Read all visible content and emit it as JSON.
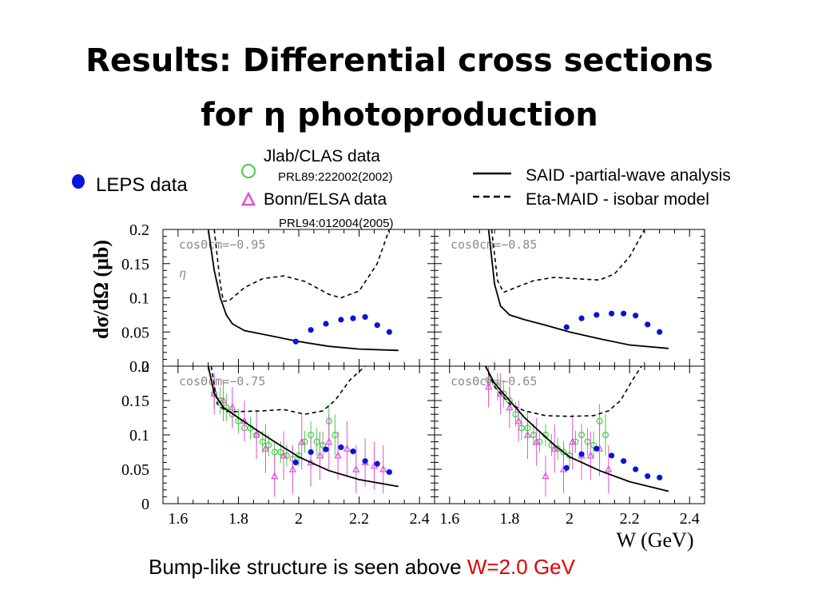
{
  "slide": {
    "title_line1": "Results: Differential cross sections",
    "title_line2": "for η photoproduction",
    "conclusion_prefix": "Bump-like structure is seen above ",
    "conclusion_highlight": "W=2.0 GeV"
  },
  "legend": {
    "leps": "LEPS data",
    "clas": "Jlab/CLAS data",
    "clas_ref": "PRL89:222002(2002)",
    "elsa": "Bonn/ELSA data",
    "elsa_ref": "PRL94:012004(2005)",
    "said": "SAID -partial-wave analysis",
    "maid": "Eta-MAID - isobar model"
  },
  "colors": {
    "leps": "#0a14d8",
    "clas": "#44cc44",
    "elsa": "#e050d8",
    "conclusion_highlight": "#e00000"
  },
  "chart_data": {
    "type": "scatter",
    "xlabel": "W (GeV)",
    "ylabel": "dσ/dΩ (μb)",
    "xlim": [
      1.55,
      2.45
    ],
    "ylim": [
      0,
      0.2
    ],
    "x_ticks": [
      "1.6",
      "1.8",
      "2",
      "2.2",
      "2.4"
    ],
    "y_ticks": [
      "0",
      "0.05",
      "0.1",
      "0.15",
      "0.2"
    ],
    "eta_label": "η",
    "panels": [
      {
        "label": "cosΘcm=−0.95",
        "position": "top-left",
        "leps": {
          "x": [
            1.99,
            2.04,
            2.09,
            2.14,
            2.18,
            2.22,
            2.26,
            2.3
          ],
          "y": [
            0.036,
            0.053,
            0.062,
            0.068,
            0.07,
            0.072,
            0.06,
            0.05
          ]
        },
        "said": {
          "x": [
            1.7,
            1.72,
            1.74,
            1.76,
            1.78,
            1.82,
            1.9,
            2.0,
            2.1,
            2.2,
            2.33
          ],
          "y": [
            0.2,
            0.14,
            0.1,
            0.075,
            0.062,
            0.052,
            0.045,
            0.036,
            0.029,
            0.025,
            0.023
          ]
        },
        "maid": {
          "x": [
            1.72,
            1.74,
            1.75,
            1.77,
            1.82,
            1.88,
            1.95,
            2.02,
            2.1,
            2.14,
            2.2,
            2.26,
            2.3
          ],
          "y": [
            0.2,
            0.12,
            0.095,
            0.096,
            0.115,
            0.128,
            0.132,
            0.124,
            0.105,
            0.1,
            0.11,
            0.15,
            0.2
          ]
        }
      },
      {
        "label": "cosΘcm=−0.85",
        "position": "top-right",
        "leps": {
          "x": [
            1.99,
            2.04,
            2.09,
            2.14,
            2.18,
            2.22,
            2.26,
            2.3
          ],
          "y": [
            0.057,
            0.07,
            0.075,
            0.077,
            0.077,
            0.074,
            0.061,
            0.05
          ]
        },
        "said": {
          "x": [
            1.73,
            1.75,
            1.77,
            1.8,
            1.85,
            1.92,
            2.0,
            2.1,
            2.2,
            2.33
          ],
          "y": [
            0.2,
            0.12,
            0.088,
            0.075,
            0.068,
            0.06,
            0.05,
            0.04,
            0.031,
            0.026
          ]
        },
        "maid": {
          "x": [
            1.74,
            1.76,
            1.78,
            1.82,
            1.88,
            1.95,
            2.02,
            2.1,
            2.15,
            2.2,
            2.25
          ],
          "y": [
            0.2,
            0.125,
            0.108,
            0.115,
            0.125,
            0.13,
            0.128,
            0.126,
            0.135,
            0.16,
            0.2
          ]
        }
      },
      {
        "label": "cosΘcm=−0.75",
        "position": "bottom-left",
        "leps": {
          "x": [
            1.99,
            2.04,
            2.09,
            2.14,
            2.18,
            2.22,
            2.26,
            2.3
          ],
          "y": [
            0.06,
            0.075,
            0.079,
            0.082,
            0.076,
            0.062,
            0.058,
            0.046
          ]
        },
        "said": {
          "x": [
            1.7,
            1.72,
            1.75,
            1.8,
            1.85,
            1.92,
            2.0,
            2.1,
            2.2,
            2.33
          ],
          "y": [
            0.2,
            0.16,
            0.14,
            0.125,
            0.11,
            0.09,
            0.068,
            0.048,
            0.035,
            0.025
          ]
        },
        "maid": {
          "x": [
            1.71,
            1.73,
            1.76,
            1.8,
            1.88,
            1.95,
            2.02,
            2.08,
            2.12,
            2.17,
            2.22
          ],
          "y": [
            0.2,
            0.145,
            0.134,
            0.134,
            0.135,
            0.137,
            0.13,
            0.135,
            0.15,
            0.18,
            0.2
          ]
        },
        "clas": {
          "x": [
            1.72,
            1.74,
            1.76,
            1.78,
            1.8,
            1.82,
            1.84,
            1.86,
            1.88,
            1.9,
            1.92,
            1.94,
            1.96,
            1.98,
            2.0,
            2.02,
            2.04,
            2.06,
            2.08,
            2.1,
            2.12
          ],
          "y": [
            0.16,
            0.15,
            0.14,
            0.13,
            0.12,
            0.11,
            0.11,
            0.1,
            0.09,
            0.085,
            0.075,
            0.075,
            0.07,
            0.065,
            0.07,
            0.09,
            0.1,
            0.09,
            0.085,
            0.12,
            0.1
          ],
          "err": [
            0.02,
            0.02,
            0.02,
            0.02,
            0.018,
            0.018,
            0.016,
            0.016,
            0.016,
            0.016,
            0.016,
            0.016,
            0.016,
            0.016,
            0.016,
            0.016,
            0.02,
            0.02,
            0.02,
            0.025,
            0.03
          ]
        },
        "elsa": {
          "x": [
            1.72,
            1.75,
            1.78,
            1.82,
            1.86,
            1.89,
            1.92,
            1.95,
            1.98,
            2.01,
            2.04,
            2.07,
            2.1,
            2.13,
            2.16,
            2.19,
            2.22,
            2.25,
            2.28
          ],
          "y": [
            0.16,
            0.15,
            0.14,
            0.12,
            0.1,
            0.08,
            0.04,
            0.07,
            0.05,
            0.09,
            0.06,
            0.07,
            0.09,
            0.07,
            0.08,
            0.05,
            0.06,
            0.055,
            0.05
          ],
          "err": [
            0.03,
            0.03,
            0.03,
            0.03,
            0.035,
            0.035,
            0.03,
            0.035,
            0.035,
            0.04,
            0.035,
            0.035,
            0.04,
            0.035,
            0.04,
            0.035,
            0.035,
            0.035,
            0.035
          ]
        }
      },
      {
        "label": "cosΘcm=−0.65",
        "position": "bottom-right",
        "leps": {
          "x": [
            1.99,
            2.04,
            2.09,
            2.14,
            2.18,
            2.22,
            2.26,
            2.3
          ],
          "y": [
            0.052,
            0.072,
            0.08,
            0.07,
            0.062,
            0.05,
            0.04,
            0.038
          ]
        },
        "said": {
          "x": [
            1.72,
            1.75,
            1.8,
            1.85,
            1.9,
            1.95,
            2.0,
            2.1,
            2.2,
            2.33
          ],
          "y": [
            0.2,
            0.175,
            0.15,
            0.125,
            0.105,
            0.085,
            0.068,
            0.048,
            0.032,
            0.018
          ]
        },
        "maid": {
          "x": [
            1.72,
            1.75,
            1.8,
            1.85,
            1.92,
            2.0,
            2.08,
            2.13,
            2.17,
            2.21,
            2.24
          ],
          "y": [
            0.2,
            0.17,
            0.145,
            0.135,
            0.128,
            0.127,
            0.128,
            0.135,
            0.15,
            0.18,
            0.2
          ]
        },
        "clas": {
          "x": [
            1.73,
            1.76,
            1.78,
            1.8,
            1.82,
            1.84,
            1.86,
            1.88,
            1.9,
            1.92,
            1.94,
            1.96,
            1.98,
            2.0,
            2.02,
            2.04,
            2.06,
            2.08,
            2.1,
            2.12
          ],
          "y": [
            0.18,
            0.17,
            0.16,
            0.15,
            0.13,
            0.11,
            0.11,
            0.1,
            0.09,
            0.1,
            0.085,
            0.08,
            0.075,
            0.07,
            0.09,
            0.1,
            0.09,
            0.085,
            0.12,
            0.1
          ],
          "err": [
            0.02,
            0.02,
            0.02,
            0.02,
            0.018,
            0.018,
            0.016,
            0.016,
            0.016,
            0.016,
            0.016,
            0.016,
            0.016,
            0.016,
            0.016,
            0.016,
            0.02,
            0.02,
            0.025,
            0.03
          ]
        },
        "elsa": {
          "x": [
            1.73,
            1.77,
            1.8,
            1.83,
            1.86,
            1.89,
            1.92,
            1.95,
            1.98,
            2.01,
            2.04,
            2.07,
            2.1,
            2.13
          ],
          "y": [
            0.17,
            0.16,
            0.14,
            0.12,
            0.1,
            0.09,
            0.04,
            0.08,
            0.05,
            0.09,
            0.07,
            0.07,
            0.08,
            0.05
          ],
          "err": [
            0.03,
            0.03,
            0.03,
            0.03,
            0.035,
            0.035,
            0.03,
            0.035,
            0.035,
            0.04,
            0.035,
            0.035,
            0.04,
            0.035
          ]
        }
      }
    ]
  }
}
